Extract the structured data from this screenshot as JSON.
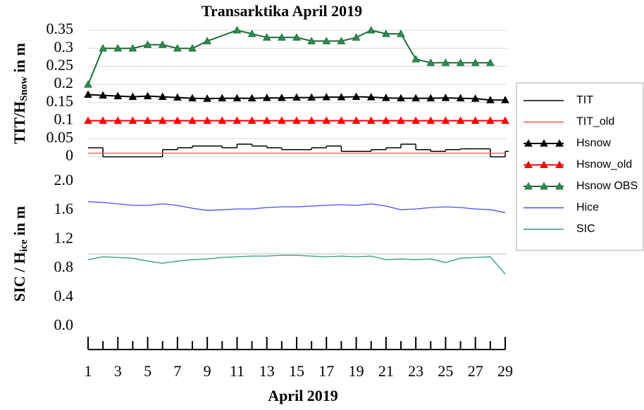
{
  "chart_data": [
    {
      "type": "line",
      "title": "Transarktika April 2019",
      "ylabel": [
        "TIT/H",
        "Snow",
        " in m"
      ],
      "ylim": [
        0,
        0.35
      ],
      "yticks": [
        0,
        0.05,
        0.1,
        0.15,
        0.2,
        0.25,
        0.3,
        0.35
      ],
      "grid": true,
      "xlim": [
        1,
        29
      ],
      "x": [
        1,
        2,
        3,
        4,
        5,
        6,
        7,
        8,
        9,
        10,
        11,
        12,
        13,
        14,
        15,
        16,
        17,
        18,
        19,
        20,
        21,
        22,
        23,
        24,
        25,
        26,
        27,
        28,
        29
      ],
      "series": [
        {
          "name": "TIT",
          "color": "#000000",
          "style": "step",
          "values": [
            0.025,
            0,
            0,
            0,
            0,
            0.02,
            0.025,
            0.03,
            0.03,
            0.025,
            0.035,
            0.03,
            0.025,
            0.02,
            0.02,
            0.025,
            0.03,
            0.015,
            0.015,
            0.02,
            0.025,
            0.035,
            0.02,
            0.015,
            0.02,
            0.022,
            0.022,
            0,
            0.015
          ]
        },
        {
          "name": "TIT_old",
          "color": "#ff5050",
          "x": [
            1,
            29
          ],
          "values": [
            0.01,
            0.01
          ]
        },
        {
          "name": "Hsnow",
          "color": "#000000",
          "marker": "triangle",
          "marker_color": "#000000",
          "values": [
            0.172,
            0.17,
            0.168,
            0.166,
            0.168,
            0.166,
            0.164,
            0.162,
            0.161,
            0.162,
            0.162,
            0.162,
            0.163,
            0.163,
            0.164,
            0.164,
            0.165,
            0.165,
            0.166,
            0.165,
            0.163,
            0.162,
            0.162,
            0.162,
            0.163,
            0.162,
            0.161,
            0.157,
            0.157
          ]
        },
        {
          "name": "Hsnow_old",
          "color": "#ff0000",
          "marker": "triangle",
          "marker_color": "#ff0000",
          "values": [
            0.1,
            0.1,
            0.1,
            0.1,
            0.1,
            0.1,
            0.1,
            0.1,
            0.1,
            0.1,
            0.1,
            0.1,
            0.1,
            0.1,
            0.1,
            0.1,
            0.1,
            0.1,
            0.1,
            0.1,
            0.1,
            0.1,
            0.1,
            0.1,
            0.1,
            0.1,
            0.1,
            0.1,
            0.1
          ]
        },
        {
          "name": "Hsnow OBS",
          "color": "#1e6b35",
          "marker": "triangle",
          "marker_color": "#2e8b57",
          "x": [
            1,
            2,
            3,
            4,
            5,
            6,
            7,
            8,
            9,
            11,
            12,
            13,
            14,
            15,
            16,
            17,
            18,
            19,
            20,
            21,
            22,
            23,
            24,
            25,
            26,
            27,
            28
          ],
          "values": [
            0.2,
            0.3,
            0.3,
            0.3,
            0.31,
            0.31,
            0.3,
            0.3,
            0.32,
            0.35,
            0.34,
            0.33,
            0.33,
            0.33,
            0.32,
            0.32,
            0.32,
            0.33,
            0.35,
            0.34,
            0.34,
            0.27,
            0.26,
            0.26,
            0.26,
            0.26,
            0.26
          ]
        }
      ]
    },
    {
      "type": "line",
      "ylabel": [
        "SIC / H",
        "ice",
        " in m"
      ],
      "xlabel": "April 2019",
      "ylim": [
        0,
        2
      ],
      "yticks": [
        {
          "value": 0,
          "label": "0.0"
        },
        0.4,
        0.8,
        1.2,
        1.6,
        {
          "value": 2,
          "label": "2.0"
        }
      ],
      "reference_line": 1,
      "xlim": [
        1,
        29
      ],
      "xticks": [
        1,
        3,
        5,
        7,
        9,
        11,
        13,
        15,
        17,
        19,
        21,
        23,
        25,
        27,
        29
      ],
      "xminor": [
        2,
        4,
        6,
        8,
        10,
        12,
        14,
        16,
        18,
        20,
        22,
        24,
        26,
        28
      ],
      "x": [
        1,
        2,
        3,
        4,
        5,
        6,
        7,
        8,
        9,
        10,
        11,
        12,
        13,
        14,
        15,
        16,
        17,
        18,
        19,
        20,
        21,
        22,
        23,
        24,
        25,
        26,
        27,
        28,
        29
      ],
      "series": [
        {
          "name": "Hice",
          "color": "#4b4bff",
          "values": [
            1.72,
            1.71,
            1.69,
            1.67,
            1.67,
            1.69,
            1.67,
            1.63,
            1.6,
            1.61,
            1.62,
            1.62,
            1.64,
            1.65,
            1.65,
            1.66,
            1.67,
            1.68,
            1.67,
            1.69,
            1.66,
            1.61,
            1.62,
            1.64,
            1.65,
            1.64,
            1.62,
            1.61,
            1.57
          ]
        },
        {
          "name": "SIC",
          "color": "#2e9e6e",
          "values": [
            0.92,
            0.96,
            0.95,
            0.94,
            0.9,
            0.87,
            0.9,
            0.92,
            0.93,
            0.95,
            0.96,
            0.97,
            0.97,
            0.98,
            0.98,
            0.97,
            0.96,
            0.97,
            0.96,
            0.97,
            0.92,
            0.93,
            0.92,
            0.93,
            0.88,
            0.94,
            0.95,
            0.96,
            0.72
          ]
        }
      ]
    }
  ]
}
